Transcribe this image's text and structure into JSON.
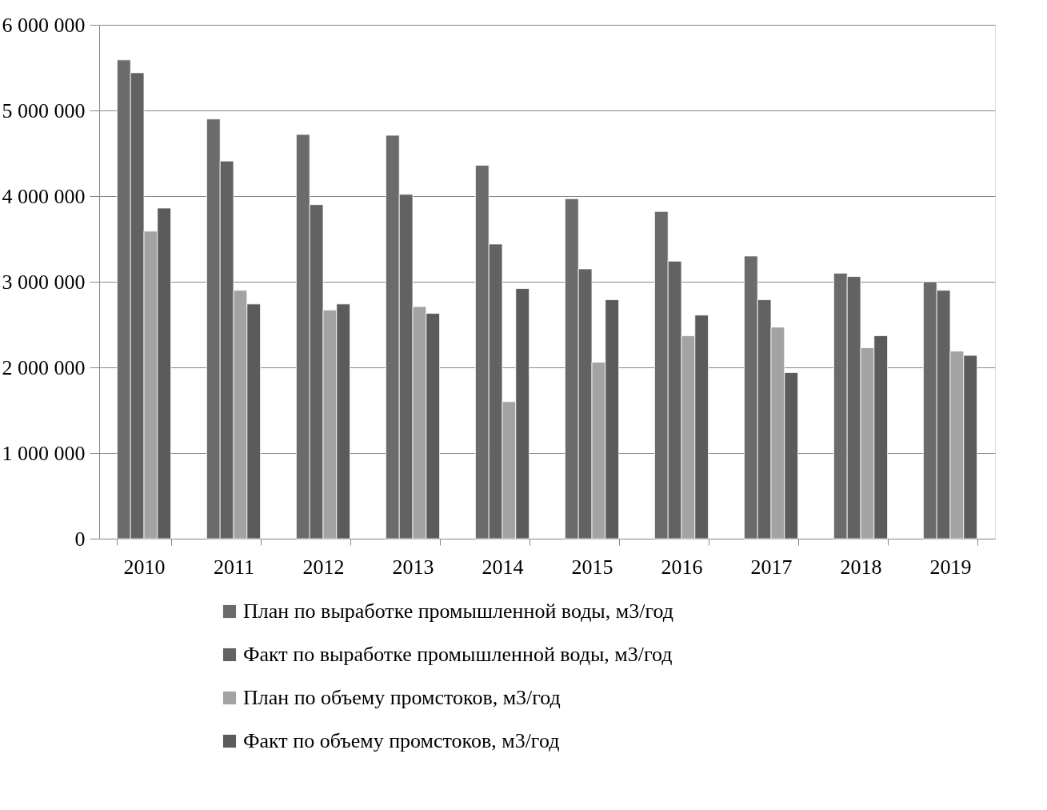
{
  "chart_data": {
    "type": "bar",
    "categories": [
      "2010",
      "2011",
      "2012",
      "2013",
      "2014",
      "2015",
      "2016",
      "2017",
      "2018",
      "2019"
    ],
    "series": [
      {
        "name": "План по выработке промышленной воды, м3/год",
        "color": "#6b6b6b",
        "values": [
          5590000,
          4900000,
          4720000,
          4710000,
          4360000,
          3970000,
          3820000,
          3300000,
          3100000,
          3000000
        ]
      },
      {
        "name": "Факт по выработке промышленной воды, м3/год",
        "color": "#626262",
        "values": [
          5440000,
          4410000,
          3900000,
          4020000,
          3440000,
          3150000,
          3240000,
          2790000,
          3060000,
          2900000
        ]
      },
      {
        "name": "План по объему промстоков, м3/год",
        "color": "#a3a3a3",
        "values": [
          3590000,
          2900000,
          2670000,
          2710000,
          1600000,
          2060000,
          2370000,
          2470000,
          2230000,
          2190000
        ]
      },
      {
        "name": "Факт по объему промстоков, м3/год",
        "color": "#5b5b5b",
        "values": [
          3860000,
          2740000,
          2740000,
          2630000,
          2920000,
          2790000,
          2610000,
          1940000,
          2370000,
          2140000
        ]
      }
    ],
    "ylim": [
      0,
      6000000
    ],
    "yticks": [
      0,
      {
        "value": 1000000,
        "label": "1 000 000"
      },
      {
        "value": 2000000,
        "label": "2 000 000"
      },
      {
        "value": 3000000,
        "label": "3 000 000"
      },
      {
        "value": 4000000,
        "label": "4 000 000"
      },
      {
        "value": 5000000,
        "label": "5 000 000"
      },
      {
        "value": 6000000,
        "label": "6 000 000"
      }
    ],
    "grid": "y",
    "legend": "bottom"
  }
}
